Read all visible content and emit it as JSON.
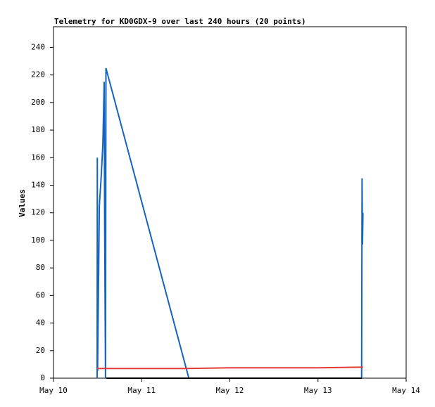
{
  "chart_data": {
    "type": "line",
    "title": "Telemetry for KD0GDX-9 over last 240 hours (20 points)",
    "y_label": "Values",
    "xlim": [
      0,
      4
    ],
    "xticks": [
      {
        "value": 0,
        "label": "May 10"
      },
      {
        "value": 1,
        "label": "May 11"
      },
      {
        "value": 2,
        "label": "May 12"
      },
      {
        "value": 3,
        "label": "May 13"
      },
      {
        "value": 4,
        "label": "May 14"
      }
    ],
    "ylim": [
      0,
      255
    ],
    "yticks": [
      0,
      20,
      40,
      60,
      80,
      100,
      120,
      140,
      160,
      180,
      200,
      220,
      240
    ],
    "grid": false,
    "series": [
      {
        "color": "#1565c0",
        "x": [
          0.495,
          0.497,
          0.5,
          0.52,
          0.54,
          0.56,
          0.575,
          0.58,
          0.59,
          0.595,
          1.535,
          3.495,
          3.5,
          3.505,
          3.51
        ],
        "values": [
          0,
          160,
          5,
          125,
          145,
          170,
          215,
          115,
          0,
          225,
          0,
          0,
          145,
          97,
          120
        ]
      },
      {
        "color": "#e53935",
        "x": [
          0.495,
          1.5,
          2.0,
          3.0,
          3.51
        ],
        "values": [
          7,
          7,
          7.5,
          7.5,
          8
        ]
      },
      {
        "color": "#000000",
        "x": [
          0.6,
          3.495
        ],
        "values": [
          0,
          0
        ]
      }
    ]
  }
}
